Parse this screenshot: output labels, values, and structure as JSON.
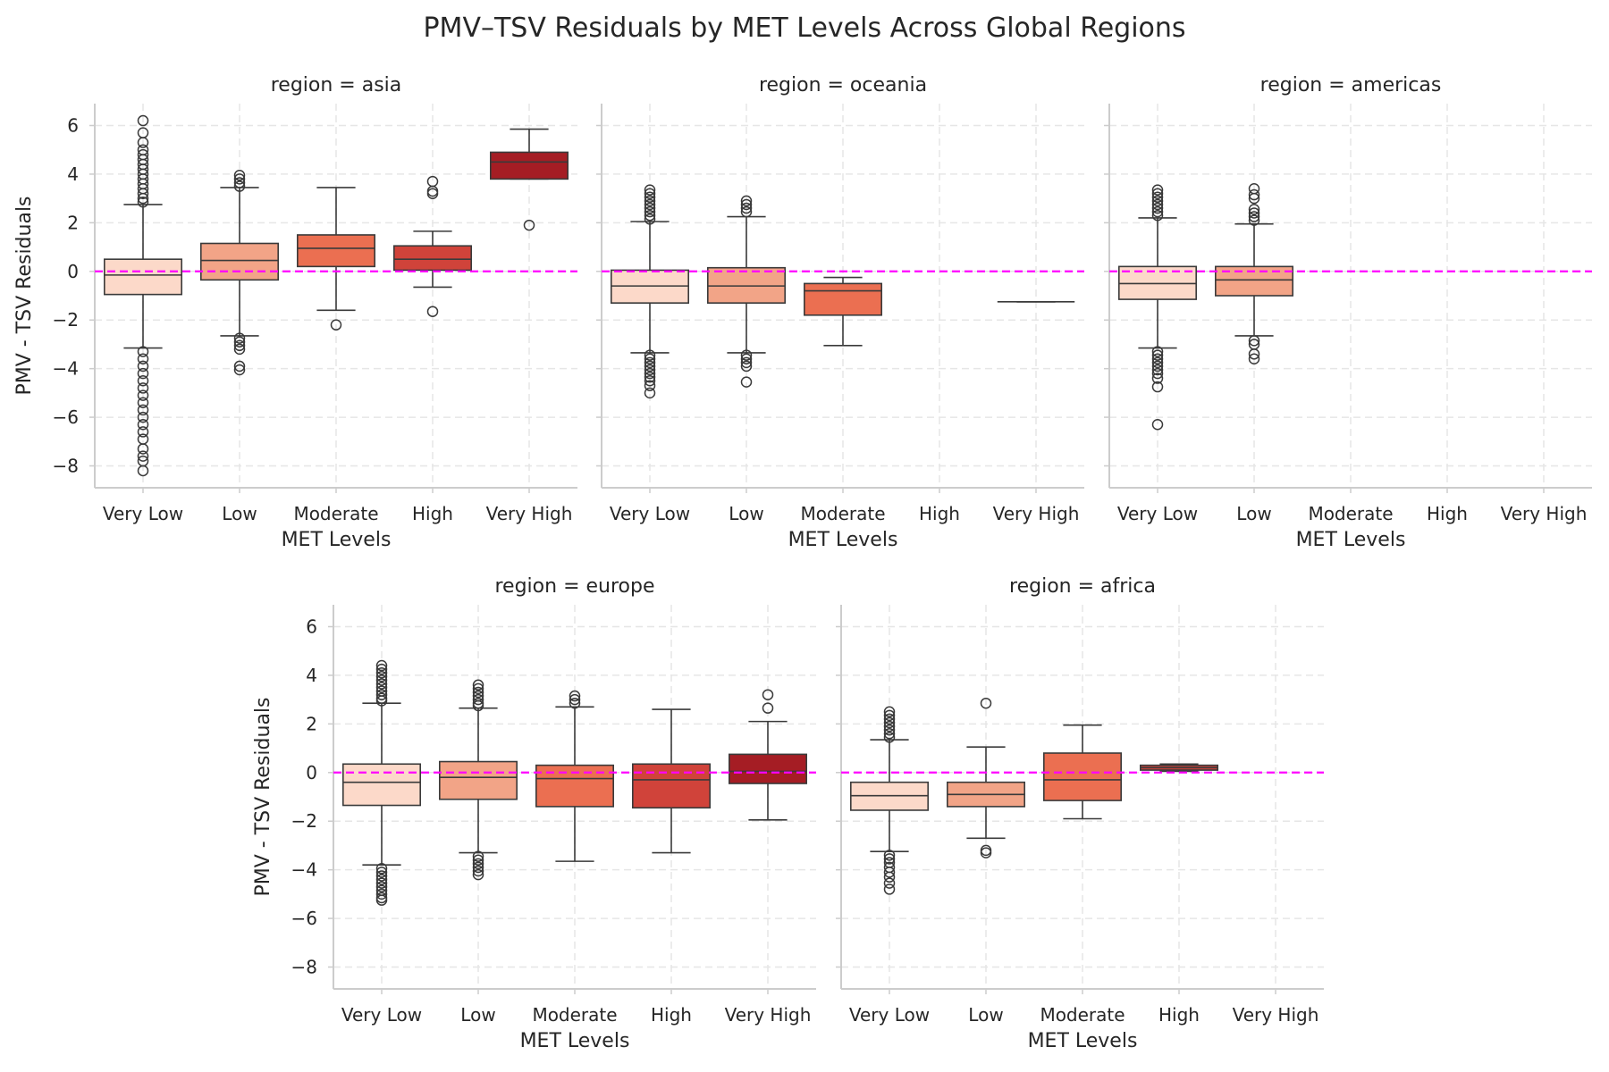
{
  "title": "PMV–TSV Residuals by MET Levels Across Global Regions",
  "colors": {
    "reference_line": "#ff00ff",
    "box_edge": "#3a3a3a",
    "grid": "#e6e6e6",
    "spine": "#cccccc",
    "palette": [
      "#fcd9c9",
      "#f2a487",
      "#eb6f51",
      "#d0433a",
      "#a51d24"
    ]
  },
  "chart_data": {
    "type": "box",
    "xlabel": "MET Levels",
    "ylabel": "PMV - TSV Residuals",
    "categories": [
      "Very Low",
      "Low",
      "Moderate",
      "High",
      "Very High"
    ],
    "ylim": [
      -8.9,
      6.9
    ],
    "yticks": [
      -8,
      -6,
      -4,
      -2,
      0,
      2,
      4,
      6
    ],
    "grid": true,
    "reference_line": {
      "y": 0,
      "style": "dashed"
    },
    "panels": [
      {
        "title": "region = asia",
        "region": "asia",
        "boxes": [
          {
            "category": "Very Low",
            "q1": -0.95,
            "median": -0.15,
            "q3": 0.5,
            "whisker_low": -3.15,
            "whisker_high": 2.75,
            "outliers": [
              6.2,
              5.7,
              5.3,
              5.0,
              4.8,
              4.6,
              4.4,
              4.2,
              4.0,
              3.8,
              3.6,
              3.4,
              3.2,
              3.0,
              2.85,
              -3.3,
              -3.6,
              -3.9,
              -4.2,
              -4.5,
              -4.8,
              -5.1,
              -5.4,
              -5.7,
              -6.0,
              -6.3,
              -6.6,
              -6.9,
              -7.3,
              -7.6,
              -7.8,
              -8.2
            ]
          },
          {
            "category": "Low",
            "q1": -0.35,
            "median": 0.45,
            "q3": 1.15,
            "whisker_low": -2.65,
            "whisker_high": 3.45,
            "outliers": [
              3.95,
              3.8,
              3.65,
              3.5,
              -2.75,
              -2.9,
              -3.05,
              -3.2,
              -3.9,
              -4.05
            ]
          },
          {
            "category": "Moderate",
            "q1": 0.2,
            "median": 0.95,
            "q3": 1.5,
            "whisker_low": -1.6,
            "whisker_high": 3.45,
            "outliers": [
              -2.2
            ]
          },
          {
            "category": "High",
            "q1": 0.05,
            "median": 0.5,
            "q3": 1.05,
            "whisker_low": -0.65,
            "whisker_high": 1.65,
            "outliers": [
              3.7,
              3.3,
              3.2,
              -1.65
            ]
          },
          {
            "category": "Very High",
            "q1": 3.8,
            "median": 4.5,
            "q3": 4.9,
            "whisker_low": 3.8,
            "whisker_high": 5.85,
            "outliers": [
              1.9
            ]
          }
        ]
      },
      {
        "title": "region = oceania",
        "region": "oceania",
        "boxes": [
          {
            "category": "Very Low",
            "q1": -1.3,
            "median": -0.6,
            "q3": 0.05,
            "whisker_low": -3.35,
            "whisker_high": 2.05,
            "outliers": [
              3.35,
              3.2,
              3.05,
              2.9,
              2.75,
              2.6,
              2.45,
              2.3,
              2.15,
              -3.45,
              -3.6,
              -3.75,
              -3.9,
              -4.05,
              -4.2,
              -4.35,
              -4.5,
              -4.7,
              -5.0
            ]
          },
          {
            "category": "Low",
            "q1": -1.3,
            "median": -0.6,
            "q3": 0.15,
            "whisker_low": -3.35,
            "whisker_high": 2.25,
            "outliers": [
              2.9,
              2.75,
              2.6,
              2.45,
              -3.45,
              -3.6,
              -3.75,
              -3.9,
              -4.55
            ]
          },
          {
            "category": "Moderate",
            "q1": -1.8,
            "median": -0.8,
            "q3": -0.5,
            "whisker_low": -3.05,
            "whisker_high": -0.25,
            "outliers": []
          },
          {
            "category": "Very High",
            "q1": -1.25,
            "median": -1.25,
            "q3": -1.25,
            "whisker_low": -1.25,
            "whisker_high": -1.25,
            "outliers": []
          }
        ]
      },
      {
        "title": "region = americas",
        "region": "americas",
        "boxes": [
          {
            "category": "Very Low",
            "q1": -1.15,
            "median": -0.5,
            "q3": 0.2,
            "whisker_low": -3.15,
            "whisker_high": 2.2,
            "outliers": [
              3.35,
              3.2,
              3.05,
              2.9,
              2.75,
              2.6,
              2.45,
              2.3,
              -3.3,
              -3.45,
              -3.6,
              -3.75,
              -3.9,
              -4.05,
              -4.2,
              -4.4,
              -4.75,
              -6.3
            ]
          },
          {
            "category": "Low",
            "q1": -1.0,
            "median": -0.35,
            "q3": 0.2,
            "whisker_low": -2.65,
            "whisker_high": 1.95,
            "outliers": [
              3.4,
              3.15,
              3.0,
              2.55,
              2.4,
              2.25,
              2.1,
              -2.85,
              -3.0,
              -3.4,
              -3.6
            ]
          }
        ]
      },
      {
        "title": "region = europe",
        "region": "europe",
        "boxes": [
          {
            "category": "Very Low",
            "q1": -1.35,
            "median": -0.4,
            "q3": 0.35,
            "whisker_low": -3.8,
            "whisker_high": 2.85,
            "outliers": [
              4.4,
              4.25,
              4.1,
              3.95,
              3.8,
              3.65,
              3.5,
              3.35,
              3.2,
              3.05,
              2.95,
              -3.95,
              -4.1,
              -4.25,
              -4.4,
              -4.55,
              -4.7,
              -4.85,
              -5.0,
              -5.15,
              -5.25
            ]
          },
          {
            "category": "Low",
            "q1": -1.1,
            "median": -0.2,
            "q3": 0.45,
            "whisker_low": -3.3,
            "whisker_high": 2.65,
            "outliers": [
              3.6,
              3.45,
              3.3,
              3.15,
              3.0,
              2.85,
              2.75,
              -3.45,
              -3.6,
              -3.75,
              -3.9,
              -4.05,
              -4.2
            ]
          },
          {
            "category": "Moderate",
            "q1": -1.4,
            "median": -0.25,
            "q3": 0.3,
            "whisker_low": -3.65,
            "whisker_high": 2.7,
            "outliers": [
              3.15,
              3.0,
              2.85
            ]
          },
          {
            "category": "High",
            "q1": -1.45,
            "median": -0.3,
            "q3": 0.35,
            "whisker_low": -3.3,
            "whisker_high": 2.6,
            "outliers": []
          },
          {
            "category": "Very High",
            "q1": -0.45,
            "median": 0.05,
            "q3": 0.75,
            "whisker_low": -1.95,
            "whisker_high": 2.1,
            "outliers": [
              3.2,
              2.65
            ]
          }
        ]
      },
      {
        "title": "region = africa",
        "region": "africa",
        "boxes": [
          {
            "category": "Very Low",
            "q1": -1.55,
            "median": -0.95,
            "q3": -0.4,
            "whisker_low": -3.25,
            "whisker_high": 1.35,
            "outliers": [
              2.5,
              2.35,
              2.2,
              2.05,
              1.9,
              1.75,
              1.6,
              1.45,
              -3.4,
              -3.55,
              -3.7,
              -3.9,
              -4.1,
              -4.3,
              -4.55,
              -4.8
            ]
          },
          {
            "category": "Low",
            "q1": -1.4,
            "median": -0.9,
            "q3": -0.4,
            "whisker_low": -2.7,
            "whisker_high": 1.05,
            "outliers": [
              2.85,
              -3.2,
              -3.3
            ]
          },
          {
            "category": "Moderate",
            "q1": -1.15,
            "median": -0.3,
            "q3": 0.8,
            "whisker_low": -1.9,
            "whisker_high": 1.95,
            "outliers": []
          },
          {
            "category": "High",
            "q1": 0.1,
            "median": 0.2,
            "q3": 0.3,
            "whisker_low": 0.05,
            "whisker_high": 0.35,
            "outliers": []
          }
        ]
      }
    ]
  }
}
